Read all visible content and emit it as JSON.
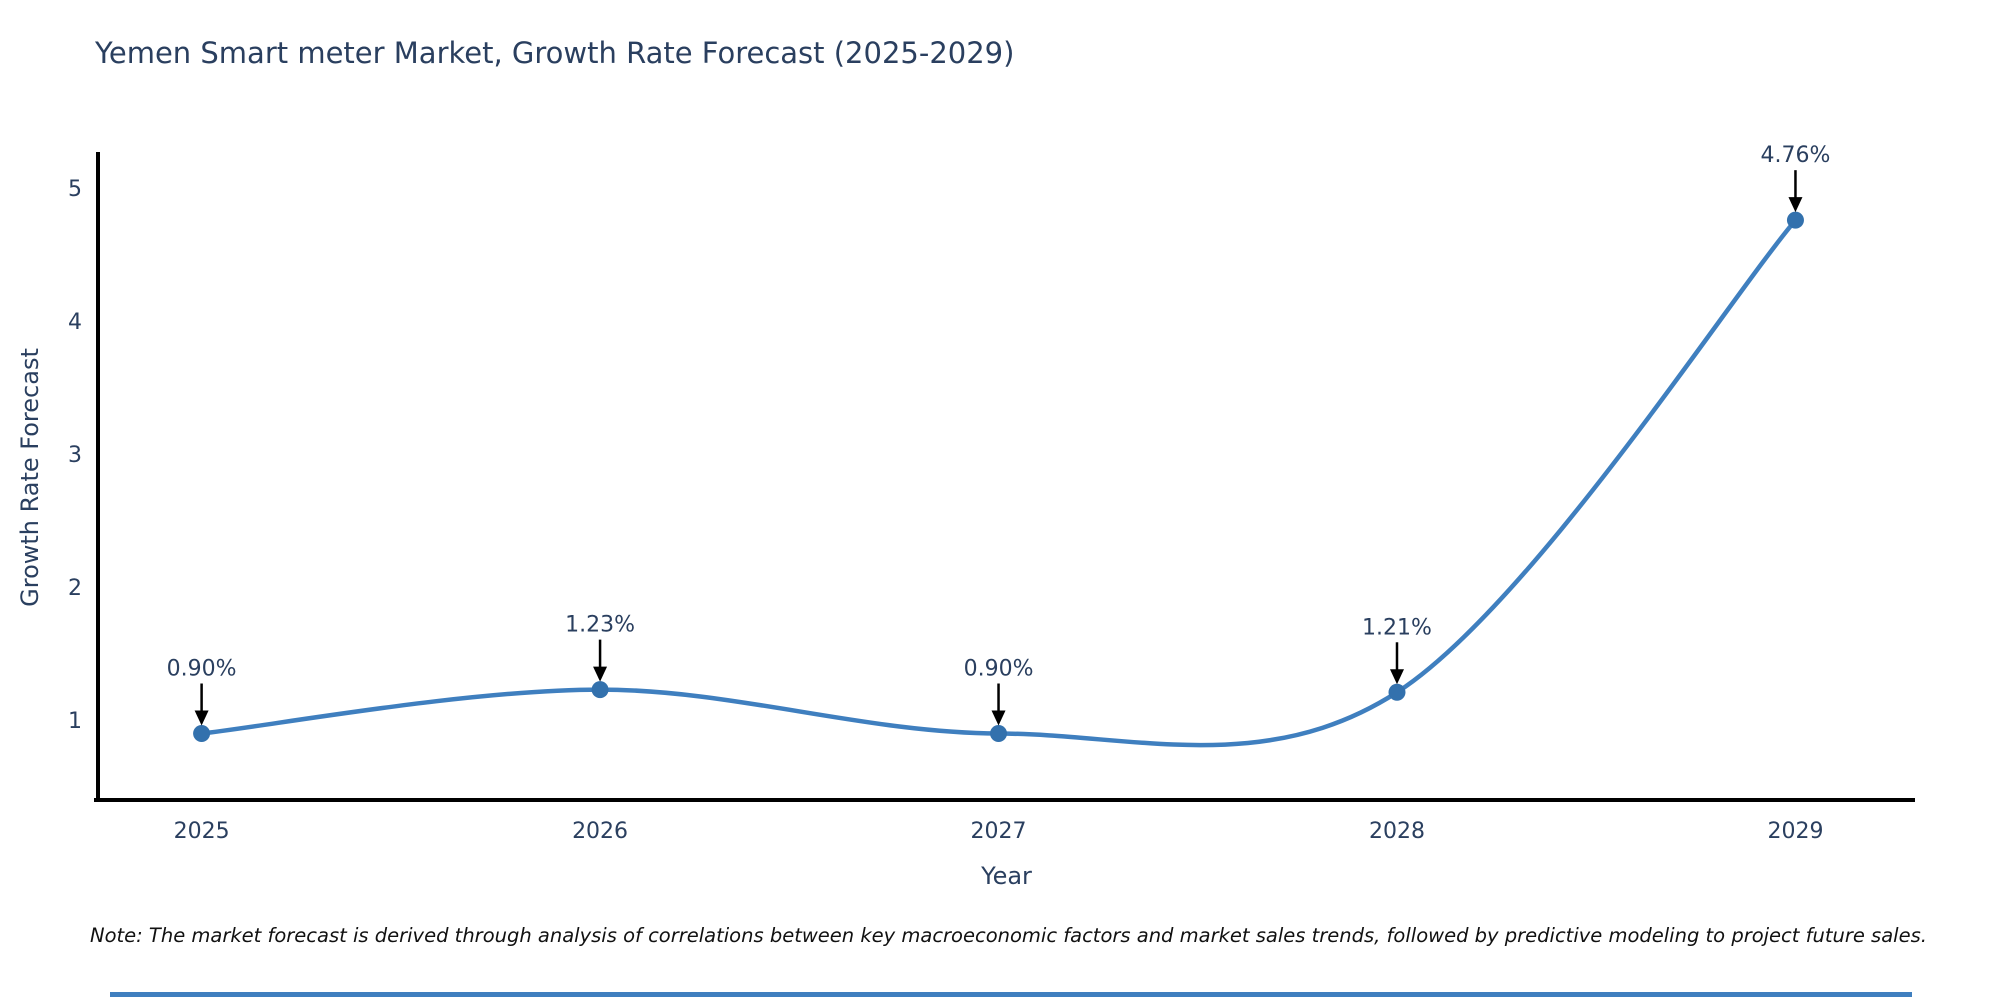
{
  "page": {
    "title": "Yemen Smart meter Market, Growth Rate Forecast (2025-2029)",
    "note": "Note: The market forecast is derived through analysis of correlations between key macroeconomic factors and market sales trends, followed by predictive modeling to project future sales."
  },
  "colors": {
    "line": "#3f7fbf",
    "marker": "#3371ad",
    "title": "#2a3f5f",
    "tick": "#2a3f5f",
    "axis": "#000000",
    "arrow": "#000000",
    "bottom_bar": "#3f7fbf"
  },
  "chart_data": {
    "type": "line",
    "line_shape": "spline",
    "title": "Yemen Smart meter Market, Growth Rate Forecast (2025-2029)",
    "xlabel": "Year",
    "ylabel": "Growth Rate Forecast",
    "x": [
      2025,
      2026,
      2027,
      2028,
      2029
    ],
    "values": [
      0.9,
      1.23,
      0.9,
      1.21,
      4.76
    ],
    "point_labels": [
      "0.90%",
      "1.23%",
      "0.90%",
      "1.21%",
      "4.76%"
    ],
    "x_tick_labels": [
      "2025",
      "2026",
      "2027",
      "2028",
      "2029"
    ],
    "y_ticks": [
      1,
      2,
      3,
      4,
      5
    ],
    "x_range": [
      2024.74,
      2029.3
    ],
    "y_range": [
      0.4,
      5.25
    ],
    "grid": false,
    "legend": "none",
    "markers": true,
    "annotations_arrows": true
  }
}
